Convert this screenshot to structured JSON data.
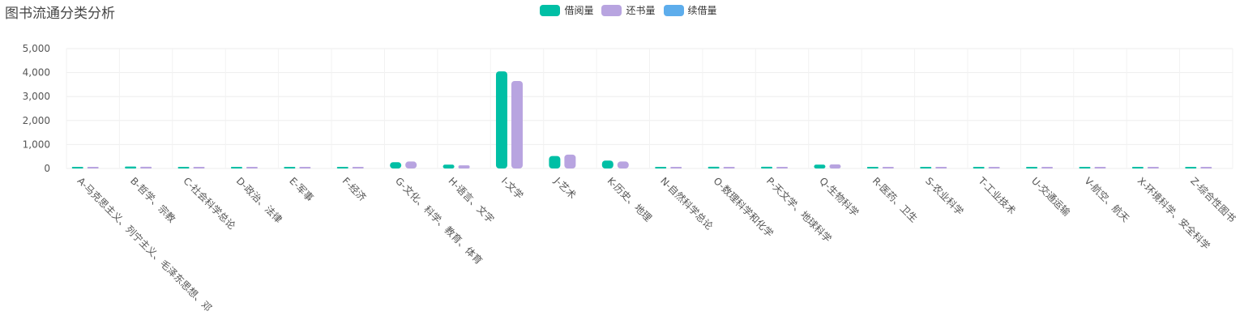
{
  "title": "图书流通分类分析",
  "chart_data": {
    "type": "bar",
    "categories": [
      "A-马克思主义、列宁主义、毛泽东思想、邓",
      "B-哲学、宗教",
      "C-社会科学总论",
      "D-政治、法律",
      "E-军事",
      "F-经济",
      "G-文化、科学、教育、体育",
      "H-语言、文字",
      "I-文学",
      "J-艺术",
      "K-历史、地理",
      "N-自然科学总论",
      "O-数理科学和化学",
      "P-天文学、地球科学",
      "Q-生物科学",
      "R-医药、卫生",
      "S-农业科学",
      "T-工业技术",
      "U-交通运输",
      "V-航空、航天",
      "X-环境科学、安全科学",
      "Z-综合性图书"
    ],
    "series": [
      {
        "name": "借阅量",
        "color": "#00BFA5",
        "values": [
          5,
          80,
          10,
          20,
          15,
          40,
          260,
          160,
          4050,
          520,
          330,
          20,
          70,
          70,
          160,
          60,
          10,
          30,
          15,
          20,
          10,
          50
        ]
      },
      {
        "name": "还书量",
        "color": "#B8A4E0",
        "values": [
          5,
          70,
          10,
          20,
          15,
          35,
          290,
          130,
          3650,
          580,
          290,
          20,
          60,
          60,
          170,
          55,
          10,
          30,
          15,
          20,
          10,
          45
        ]
      },
      {
        "name": "续借量",
        "color": "#5DADEC",
        "values": [
          0,
          0,
          0,
          0,
          0,
          0,
          0,
          0,
          0,
          0,
          0,
          0,
          0,
          0,
          0,
          0,
          0,
          0,
          0,
          0,
          0,
          0
        ]
      }
    ],
    "yticks": [
      "0",
      "1,000",
      "2,000",
      "3,000",
      "4,000",
      "5,000"
    ],
    "ylim": [
      0,
      5000
    ],
    "grid": true,
    "legend_position": "top-center",
    "x_label_rotation": "45deg"
  }
}
